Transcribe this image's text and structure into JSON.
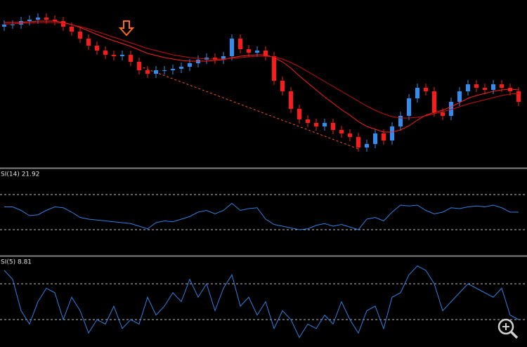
{
  "chart_data": [
    {
      "type": "candlestick",
      "up_color": "#2e8ff0",
      "down_color": "#ff1a1a",
      "ylim": [
        0,
        119
      ],
      "open": [
        100,
        101.5,
        101.5,
        104,
        105,
        106.5,
        105,
        104,
        100,
        96.5,
        91.5,
        86.5,
        83,
        80,
        79,
        80,
        75,
        69,
        66.5,
        69,
        69,
        70,
        71.5,
        74,
        76.5,
        78,
        76.5,
        79,
        91.5,
        84,
        81.5,
        83,
        79,
        61.5,
        54,
        41.5,
        34,
        31.5,
        29,
        31.5,
        26.5,
        24,
        21.5,
        14,
        16.5,
        24,
        19,
        29,
        36.5,
        49,
        56.5,
        54,
        39,
        36.5,
        46.5,
        54,
        59,
        56.5,
        55,
        59,
        56.5,
        54
      ],
      "high": [
        104.5,
        104.5,
        107,
        108,
        109.5,
        109.5,
        108,
        107,
        103,
        99.5,
        94.5,
        89.5,
        86,
        83,
        83,
        83,
        78,
        72,
        72,
        72,
        73,
        74.5,
        77,
        79.5,
        81,
        81,
        82,
        94.5,
        94.5,
        87,
        86,
        86,
        82,
        64.5,
        57,
        44.5,
        37,
        34.5,
        34.5,
        34.5,
        29.5,
        27,
        24.5,
        19.5,
        27,
        27,
        32,
        39.5,
        52,
        59.5,
        59.5,
        57,
        42,
        49.5,
        57,
        62,
        62,
        59.5,
        62,
        62,
        59.5,
        57
      ],
      "low": [
        97,
        98.5,
        98.5,
        101,
        102,
        102,
        101,
        97,
        93.5,
        88.5,
        83.5,
        80,
        77,
        76,
        76,
        72,
        66,
        63.5,
        63.5,
        66,
        66,
        67,
        68.5,
        71,
        73.5,
        73.5,
        73.5,
        76,
        81,
        78.5,
        78.5,
        76,
        58.5,
        51,
        38.5,
        31,
        28.5,
        26,
        26,
        23.5,
        21,
        18.5,
        11,
        11,
        13.5,
        16,
        16,
        26,
        33.5,
        46,
        51,
        36,
        33.5,
        33.5,
        43.5,
        51,
        53.5,
        52,
        52,
        53.5,
        51,
        43.5
      ],
      "close": [
        101.5,
        101.5,
        104,
        105,
        106.5,
        105,
        104,
        100,
        96.5,
        91.5,
        86.5,
        83,
        80,
        79,
        80,
        75,
        69,
        66.5,
        69,
        69,
        70,
        71.5,
        74,
        76.5,
        78,
        76.5,
        79,
        91.5,
        84,
        81.5,
        83,
        79,
        61.5,
        54,
        41.5,
        34,
        31.5,
        29,
        31.5,
        26.5,
        24,
        21.5,
        14,
        16.5,
        24,
        19,
        29,
        36.5,
        49,
        56.5,
        54,
        39,
        36.5,
        46.5,
        54,
        59,
        56.5,
        55,
        59,
        56.5,
        54,
        46.5
      ],
      "series": [
        {
          "color": "#ff2020",
          "values": [
            103,
            103,
            103,
            103.5,
            104,
            104,
            104,
            103,
            101.5,
            99.5,
            97,
            94.5,
            92,
            90,
            88,
            86,
            83.5,
            81,
            79.5,
            78,
            77,
            76,
            75.5,
            75.5,
            75.5,
            76,
            76.5,
            78,
            79,
            79.5,
            80,
            80,
            78,
            75,
            70.5,
            65,
            60,
            55,
            50,
            45.5,
            41,
            37,
            32.5,
            29,
            27,
            25,
            25,
            26.5,
            29.5,
            33.5,
            37,
            39,
            40.5,
            43,
            46,
            49,
            51,
            52.5,
            54,
            55,
            55.5,
            55
          ]
        },
        {
          "color": "#c81010",
          "values": [
            102,
            102,
            102.5,
            102.5,
            103,
            103,
            103,
            102.5,
            101.5,
            100,
            98.5,
            96.5,
            94.5,
            92.5,
            90.5,
            88.5,
            86.5,
            84.5,
            83,
            81.5,
            80,
            79,
            78,
            77.5,
            77,
            77,
            77,
            77.5,
            78,
            78.5,
            79,
            79,
            78.5,
            77,
            74.5,
            71.5,
            68,
            64.5,
            61,
            57.5,
            54,
            50.5,
            47,
            43.5,
            40.5,
            38,
            36,
            35,
            35,
            35.5,
            36.5,
            38,
            39.5,
            41,
            43,
            45,
            46.5,
            48,
            49.5,
            51,
            52,
            52.5
          ]
        }
      ],
      "trendline": {
        "x": [
          16,
          42
        ],
        "values": [
          72,
          13
        ],
        "color": "#ff5020"
      }
    },
    {
      "type": "line",
      "title": "SI(14) 21.92",
      "ylim": [
        0,
        100
      ],
      "levels": [
        30,
        70
      ],
      "series": [
        {
          "color": "#2f80e0",
          "values": [
            56,
            56,
            52,
            46,
            47,
            52,
            56,
            55,
            50,
            44,
            42,
            41,
            40,
            39,
            38,
            37,
            34,
            31,
            38,
            40,
            39,
            42,
            45,
            50,
            52,
            48,
            52,
            60,
            52,
            54,
            55,
            42,
            36,
            34,
            32,
            30,
            31,
            35,
            37,
            34,
            36,
            33,
            30,
            42,
            44,
            40,
            50,
            58,
            57,
            58,
            52,
            48,
            50,
            55,
            54,
            56,
            57,
            56,
            58,
            55,
            50,
            50
          ]
        }
      ]
    },
    {
      "type": "line",
      "title": "SI(5) 8.81",
      "ylim": [
        0,
        100
      ],
      "levels": [
        30,
        70
      ],
      "series": [
        {
          "color": "#2f80e0",
          "values": [
            85,
            75,
            40,
            25,
            50,
            65,
            60,
            30,
            55,
            40,
            15,
            30,
            25,
            45,
            20,
            30,
            25,
            55,
            35,
            45,
            60,
            50,
            75,
            55,
            70,
            40,
            65,
            80,
            45,
            55,
            35,
            50,
            20,
            40,
            30,
            10,
            25,
            20,
            35,
            25,
            50,
            30,
            15,
            40,
            45,
            20,
            55,
            60,
            80,
            90,
            85,
            70,
            40,
            50,
            60,
            70,
            65,
            60,
            55,
            65,
            35,
            30
          ]
        }
      ]
    }
  ]
}
